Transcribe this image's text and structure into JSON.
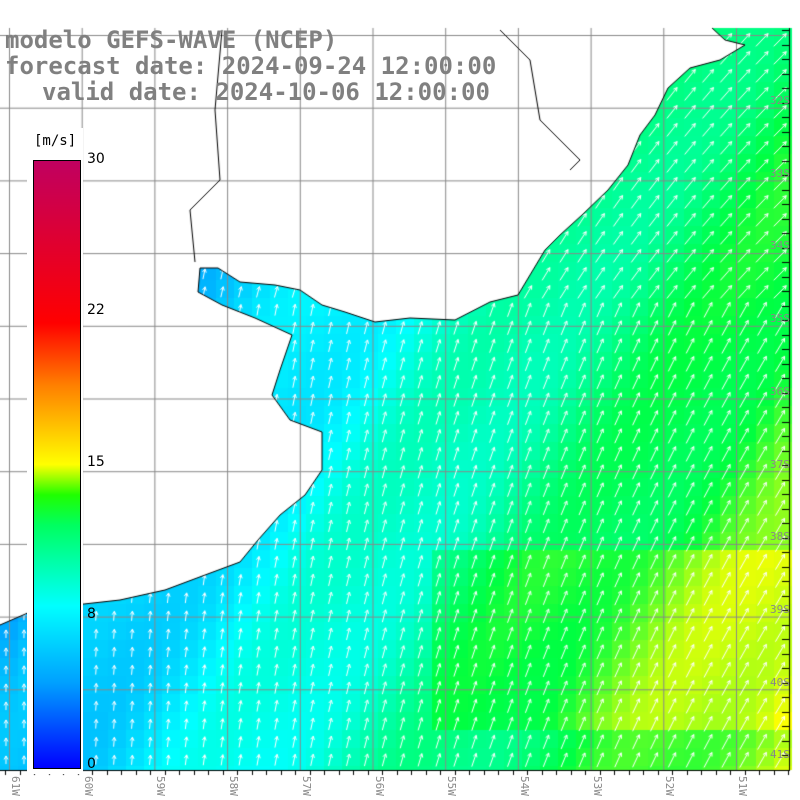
{
  "header": {
    "model": "modelo GEFS-WAVE (NCEP)",
    "forecast_date": "forecast date: 2024-09-24 12:00:00",
    "valid_date": "valid date: 2024-10-06 12:00:00"
  },
  "colorbar": {
    "unit": "[m/s]",
    "labels": [
      "30",
      "22",
      "15",
      "8",
      "0"
    ],
    "colors": {
      "low": "#0000ff",
      "mid": "#00ffff",
      "green": "#00ff40",
      "yellow": "#ffff00",
      "red": "#ff0000",
      "high": "#c00060"
    }
  },
  "axes": {
    "latitudes": [
      "32S",
      "33S",
      "34S",
      "35S",
      "36S",
      "37S",
      "38S",
      "39S",
      "40S",
      "41S"
    ],
    "longitudes": [
      "61W",
      "60W",
      "59W",
      "58W",
      "57W",
      "56W",
      "55W",
      "54W",
      "53W",
      "52W",
      "51W"
    ]
  }
}
